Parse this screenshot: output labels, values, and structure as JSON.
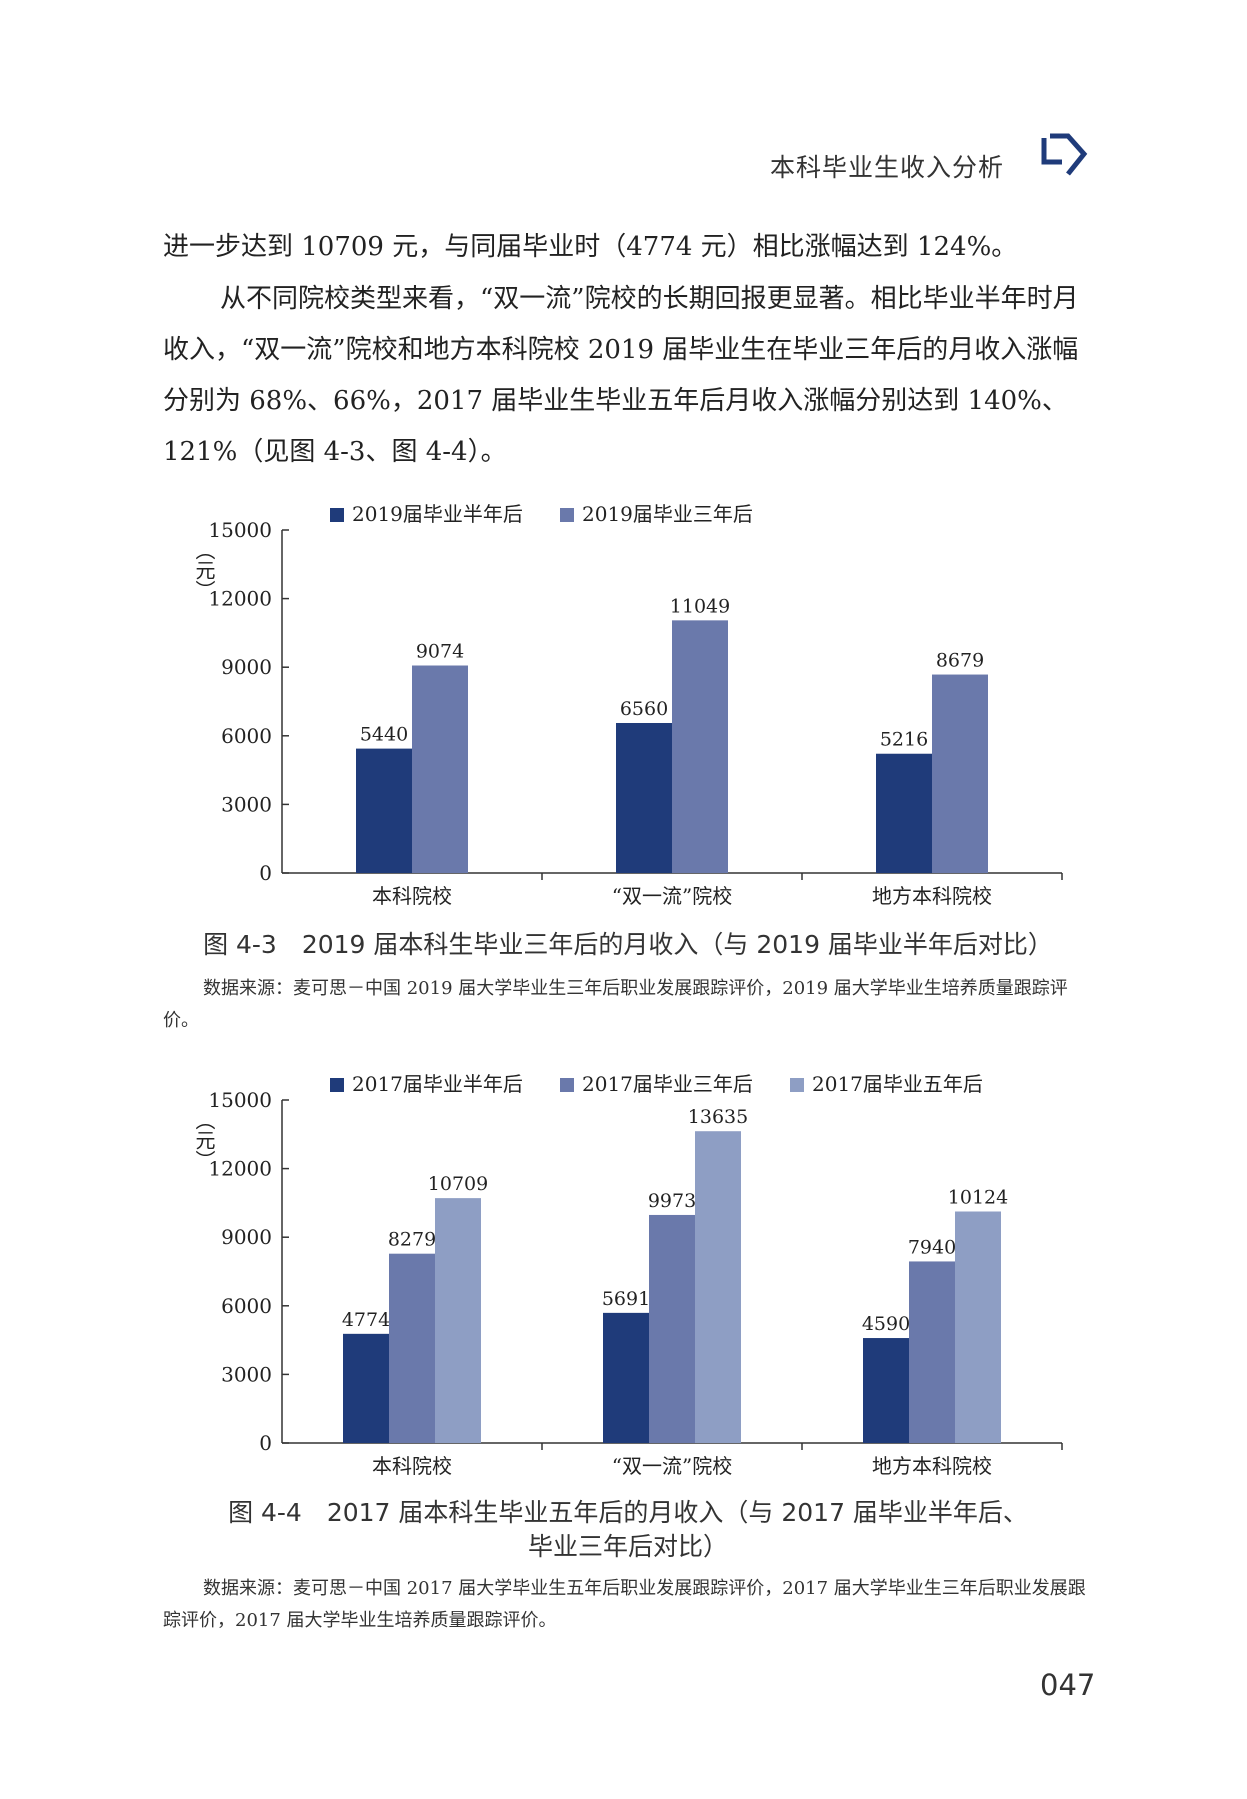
{
  "header": {
    "title": "本科毕业生收入分析"
  },
  "paragraphs": {
    "p1": "进一步达到 10709 元，与同届毕业时（4774 元）相比涨幅达到 124%。",
    "p2": "从不同院校类型来看，“双一流”院校的长期回报更显著。相比毕业半年时月收入，“双一流”院校和地方本科院校 2019 届毕业生在毕业三年后的月收入涨幅分别为 68%、66%，2017 届毕业生毕业五年后月收入涨幅分别达到 140%、121%（见图 4-3、图 4-4）。"
  },
  "colors": {
    "dark": "#1f3b7a",
    "mid": "#6a79ab",
    "light": "#8e9ec4",
    "axis": "#333333"
  },
  "chart_data": [
    {
      "type": "bar",
      "categories": [
        "本科院校",
        "“双一流”院校",
        "地方本科院校"
      ],
      "series": [
        {
          "name": "2019届毕业半年后",
          "values": [
            5440,
            6560,
            5216
          ]
        },
        {
          "name": "2019届毕业三年后",
          "values": [
            9074,
            11049,
            8679
          ]
        }
      ],
      "ylabel": "（元）",
      "ylim": [
        0,
        15000
      ],
      "yticks": [
        "0",
        "3000",
        "6000",
        "9000",
        "12000",
        "15000"
      ],
      "legend": "top"
    },
    {
      "type": "bar",
      "categories": [
        "本科院校",
        "“双一流”院校",
        "地方本科院校"
      ],
      "series": [
        {
          "name": "2017届毕业半年后",
          "values": [
            4774,
            5691,
            4590
          ]
        },
        {
          "name": "2017届毕业三年后",
          "values": [
            8279,
            9973,
            7940
          ]
        },
        {
          "name": "2017届毕业五年后",
          "values": [
            10709,
            13635,
            10124
          ]
        }
      ],
      "ylabel": "（元）",
      "ylim": [
        0,
        15000
      ],
      "yticks": [
        "0",
        "3000",
        "6000",
        "9000",
        "12000",
        "15000"
      ],
      "legend": "top"
    }
  ],
  "figures": {
    "fig1": {
      "caption": "图 4-3　2019 届本科生毕业三年后的月收入（与 2019 届毕业半年后对比）",
      "source": "数据来源：麦可思－中国 2019 届大学毕业生三年后职业发展跟踪评价，2019 届大学毕业生培养质量跟踪评价。"
    },
    "fig2": {
      "caption_line1": "图 4-4　2017 届本科生毕业五年后的月收入（与 2017 届毕业半年后、",
      "caption_line2": "毕业三年后对比）",
      "source": "数据来源：麦可思－中国 2017 届大学毕业生五年后职业发展跟踪评价，2017 届大学毕业生三年后职业发展跟踪评价，2017 届大学毕业生培养质量跟踪评价。"
    }
  },
  "page_number": "047"
}
